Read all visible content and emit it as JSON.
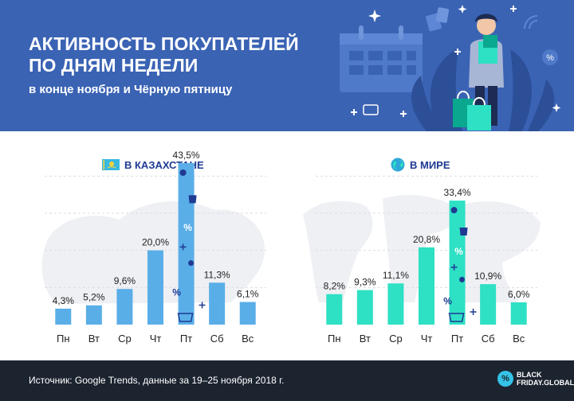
{
  "header": {
    "title_line1": "АКТИВНОСТЬ ПОКУПАТЕЛЕЙ",
    "title_line2": "ПО ДНЯМ НЕДЕЛИ",
    "subtitle": "в конце ноября и Чёрную пятницу"
  },
  "colors": {
    "header_bg": "#3a63b4",
    "kz_bar": "#5aaee8",
    "world_bar": "#2ee0c4",
    "accent_text": "#1f3a93",
    "footer_bg": "#1c2430"
  },
  "chart_data": [
    {
      "type": "bar",
      "title": "В КАЗАХСТАНЕ",
      "title_icon": "kazakhstan-flag-icon",
      "categories": [
        "Пн",
        "Вт",
        "Ср",
        "Чт",
        "Пт",
        "Сб",
        "Вс"
      ],
      "values": [
        4.3,
        5.2,
        9.6,
        20.0,
        43.5,
        11.3,
        6.1
      ],
      "labels": [
        "4,3%",
        "5,2%",
        "9,6%",
        "20,0%",
        "43,5%",
        "11,3%",
        "6,1%"
      ],
      "highlight_index": 4,
      "ylim": [
        0,
        45
      ],
      "grid": true,
      "background_map": "kazakhstan-map"
    },
    {
      "type": "bar",
      "title": "В МИРЕ",
      "title_icon": "globe-icon",
      "categories": [
        "Пн",
        "Вт",
        "Ср",
        "Чт",
        "Пт",
        "Сб",
        "Вс"
      ],
      "values": [
        8.2,
        9.3,
        11.1,
        20.8,
        33.4,
        10.9,
        6.0
      ],
      "labels": [
        "8,2%",
        "9,3%",
        "11,1%",
        "20,8%",
        "33,4%",
        "10,9%",
        "6,0%"
      ],
      "highlight_index": 4,
      "ylim": [
        0,
        45
      ],
      "grid": true,
      "background_map": "world-map"
    }
  ],
  "footer": {
    "source": "Источник: Google Trends, данные за 19–25 ноября 2018 г.",
    "brand_line1": "BLACK",
    "brand_line2": "FRIDAY.GLOBAL",
    "brand_badge": "%"
  }
}
